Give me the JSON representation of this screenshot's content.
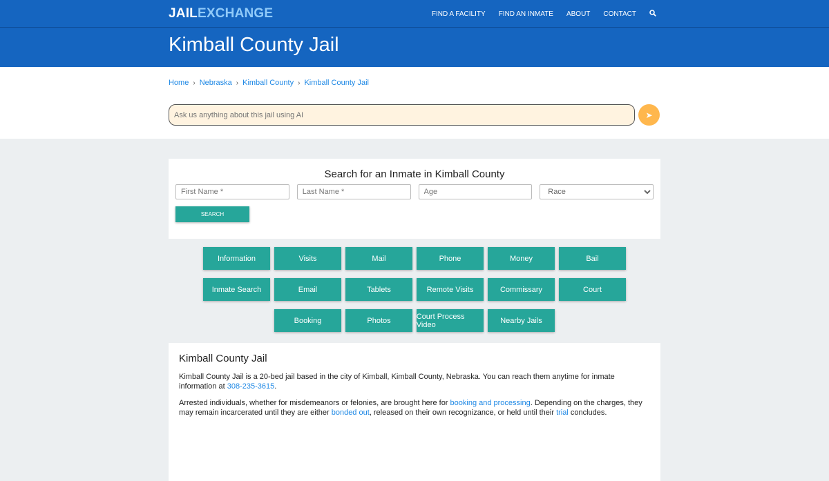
{
  "nav": {
    "logo_a": "JAIL",
    "logo_b": "EXCHANGE",
    "items": [
      "FIND A FACILITY",
      "FIND AN INMATE",
      "ABOUT",
      "CONTACT"
    ]
  },
  "page_title": "Kimball County Jail",
  "breadcrumb": [
    "Home",
    "Nebraska",
    "Kimball County",
    "Kimball County Jail"
  ],
  "ai": {
    "placeholder": "Ask us anything about this jail using AI"
  },
  "search": {
    "title": "Search for an Inmate in Kimball County",
    "first": "First Name *",
    "last": "Last Name *",
    "age": "Age",
    "race": "Race",
    "button": "SEARCH"
  },
  "buttons": [
    "Information",
    "Visits",
    "Mail",
    "Phone",
    "Money",
    "Bail",
    "Inmate Search",
    "Email",
    "Tablets",
    "Remote Visits",
    "Commissary",
    "Court",
    "Booking",
    "Photos",
    "Court Process Video",
    "Nearby Jails"
  ],
  "info": {
    "title": "Kimball County Jail",
    "p1a": "Kimball County Jail is a 20-bed jail based in the city of Kimball, Kimball County, Nebraska. You can reach them anytime for inmate information at ",
    "phone": "308-235-3615",
    "p1b": ".",
    "p2a": "Arrested individuals, whether for misdemeanors or felonies, are brought here for ",
    "l1": "booking and processing",
    "p2b": ". Depending on the charges, they may remain incarcerated until they are either ",
    "l2": "bonded out",
    "p2c": ", released on their own recognizance, or held until their ",
    "l3": "trial",
    "p2d": " concludes."
  },
  "colors": {
    "brand": "#1565c0",
    "button": "#26a69a",
    "ai_send": "#ffb74d"
  }
}
